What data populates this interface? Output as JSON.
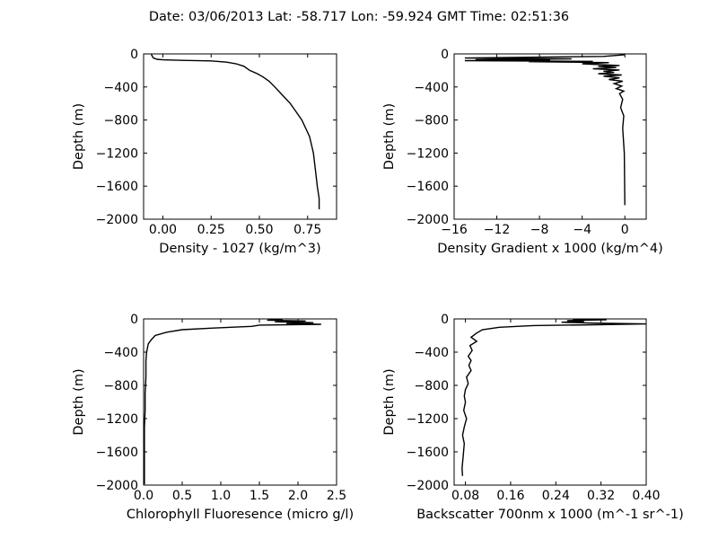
{
  "figure": {
    "title": "Date: 03/06/2013  Lat:  -58.717 Lon:  -59.924  GMT Time: 02:51:36"
  },
  "chart_data": [
    {
      "type": "line",
      "xlabel": "Density - 1027 (kg/m^3)",
      "ylabel": "Depth (m)",
      "xlim": [
        -0.1,
        0.9
      ],
      "ylim": [
        -2000,
        0
      ],
      "xticks": [
        0.0,
        0.25,
        0.5,
        0.75
      ],
      "xtick_labels": [
        "0.00",
        "0.25",
        "0.50",
        "0.75"
      ],
      "yticks": [
        0,
        -400,
        -800,
        -1200,
        -1600,
        -2000
      ],
      "ytick_labels": [
        "0",
        "−400",
        "−800",
        "−1200",
        "−1600",
        "−2000"
      ],
      "grid": false,
      "x": [
        -0.06,
        -0.05,
        -0.03,
        0.0,
        0.1,
        0.25,
        0.33,
        0.38,
        0.42,
        0.45,
        0.49,
        0.52,
        0.55,
        0.58,
        0.62,
        0.66,
        0.69,
        0.72,
        0.76,
        0.78,
        0.79,
        0.8,
        0.81,
        0.81
      ],
      "y": [
        -5,
        -50,
        -65,
        -72,
        -78,
        -85,
        -100,
        -120,
        -150,
        -200,
        -240,
        -280,
        -330,
        -400,
        -500,
        -600,
        -700,
        -800,
        -1000,
        -1200,
        -1400,
        -1600,
        -1750,
        -1880
      ]
    },
    {
      "type": "line",
      "xlabel": "Density Gradient x 1000 (kg/m^4)",
      "ylabel": "Depth (m)",
      "xlim": [
        -16,
        2
      ],
      "ylim": [
        -2000,
        0
      ],
      "xticks": [
        -16,
        -12,
        -8,
        -4,
        0
      ],
      "xtick_labels": [
        "−16",
        "−12",
        "−8",
        "−4",
        "0"
      ],
      "yticks": [
        0,
        -400,
        -800,
        -1200,
        -1600,
        -2000
      ],
      "ytick_labels": [
        "0",
        "−400",
        "−800",
        "−1200",
        "−1600",
        "−2000"
      ],
      "grid": false,
      "x": [
        0,
        -2,
        -15,
        -5,
        -14,
        -7,
        -15,
        -3,
        -9,
        -1.5,
        -4,
        -0.5,
        -2.5,
        -0.8,
        -3,
        -0.5,
        -2,
        -1,
        -2.5,
        -0.3,
        -2,
        -0.5,
        -1.5,
        -0.2,
        -1,
        -0.3,
        -0.8,
        -0.1,
        -0.5,
        -0.2,
        -0.4,
        -0.1,
        -0.2,
        -0.05,
        0
      ],
      "y": [
        -10,
        -30,
        -50,
        -60,
        -70,
        -75,
        -82,
        -90,
        -95,
        -105,
        -120,
        -140,
        -150,
        -165,
        -180,
        -195,
        -210,
        -225,
        -240,
        -255,
        -270,
        -290,
        -310,
        -330,
        -360,
        -390,
        -420,
        -450,
        -480,
        -550,
        -650,
        -750,
        -900,
        -1200,
        -1830
      ]
    },
    {
      "type": "line",
      "xlabel": "Chlorophyll Fluoresence (micro g/l)",
      "ylabel": "Depth (m)",
      "xlim": [
        0,
        2.5
      ],
      "ylim": [
        -2000,
        0
      ],
      "xticks": [
        0.0,
        0.5,
        1.0,
        1.5,
        2.0,
        2.5
      ],
      "xtick_labels": [
        "0.0",
        "0.5",
        "1.0",
        "1.5",
        "2.0",
        "2.5"
      ],
      "yticks": [
        0,
        -400,
        -800,
        -1200,
        -1600,
        -2000
      ],
      "ytick_labels": [
        "0",
        "−400",
        "−800",
        "−1200",
        "−1600",
        "−2000"
      ],
      "grid": false,
      "x": [
        1.8,
        1.6,
        2.1,
        1.7,
        2.2,
        1.85,
        2.3,
        1.5,
        1.4,
        0.9,
        0.5,
        0.3,
        0.15,
        0.1,
        0.06,
        0.04,
        0.03,
        0.03,
        0.02,
        0.02,
        0.01,
        0.01,
        0.01,
        0.01,
        0.01
      ],
      "y": [
        -5,
        -15,
        -25,
        -35,
        -45,
        -55,
        -65,
        -75,
        -90,
        -110,
        -130,
        -160,
        -200,
        -250,
        -300,
        -400,
        -500,
        -700,
        -900,
        -1100,
        -1300,
        -1500,
        -1700,
        -1850,
        -1990
      ]
    },
    {
      "type": "line",
      "xlabel": "Backscatter 700nm x 1000 (m^-1 sr^-1)",
      "ylabel": "Depth (m)",
      "xlim": [
        0.06,
        0.4
      ],
      "ylim": [
        -2000,
        0
      ],
      "xticks": [
        0.08,
        0.16,
        0.24,
        0.32,
        0.4
      ],
      "xtick_labels": [
        "0.08",
        "0.16",
        "0.24",
        "0.32",
        "0.40"
      ],
      "yticks": [
        0,
        -400,
        -800,
        -1200,
        -1600,
        -2000
      ],
      "ytick_labels": [
        "0",
        "−400",
        "−800",
        "−1200",
        "−1600",
        "−2000"
      ],
      "grid": false,
      "x": [
        0.27,
        0.33,
        0.26,
        0.29,
        0.25,
        0.3,
        0.4,
        0.31,
        0.2,
        0.14,
        0.11,
        0.1,
        0.09,
        0.1,
        0.088,
        0.092,
        0.085,
        0.09,
        0.086,
        0.09,
        0.082,
        0.085,
        0.08,
        0.078,
        0.08,
        0.077,
        0.082,
        0.078,
        0.075,
        0.078,
        0.076,
        0.074,
        0.075
      ],
      "y": [
        -5,
        -10,
        -20,
        -30,
        -40,
        -50,
        -60,
        -70,
        -80,
        -100,
        -130,
        -170,
        -220,
        -270,
        -320,
        -380,
        -450,
        -500,
        -560,
        -620,
        -700,
        -780,
        -850,
        -930,
        -1000,
        -1100,
        -1200,
        -1300,
        -1400,
        -1500,
        -1650,
        -1800,
        -1890
      ]
    }
  ]
}
